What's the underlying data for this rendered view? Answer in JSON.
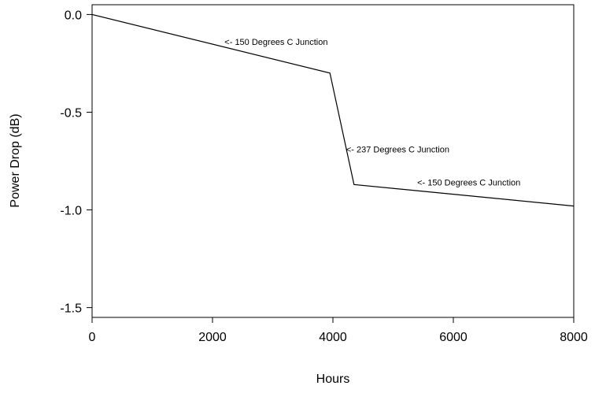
{
  "chart_data": {
    "type": "line",
    "title": "",
    "xlabel": "Hours",
    "ylabel": "Power Drop (dB)",
    "xlim": [
      0,
      8000
    ],
    "ylim": [
      -1.55,
      0.05
    ],
    "x_ticks": [
      0,
      2000,
      4000,
      6000,
      8000
    ],
    "x_tick_labels": [
      "0",
      "2000",
      "4000",
      "6000",
      "8000"
    ],
    "y_ticks": [
      0.0,
      -0.5,
      -1.0,
      -1.5
    ],
    "y_tick_labels": [
      "0.0",
      "-0.5",
      "-1.0",
      "-1.5"
    ],
    "grid": false,
    "series": [
      {
        "x": [
          0,
          3950,
          4350,
          8000
        ],
        "y": [
          0.0,
          -0.3,
          -0.87,
          -0.98
        ]
      }
    ],
    "annotations": [
      {
        "text": "<- 150 Degrees C Junction",
        "x": 2200,
        "y": -0.155
      },
      {
        "text": "<- 237 Degrees C Junction",
        "x": 4220,
        "y": -0.705
      },
      {
        "text": "<- 150 Degrees C Junction",
        "x": 5400,
        "y": -0.875
      }
    ]
  }
}
